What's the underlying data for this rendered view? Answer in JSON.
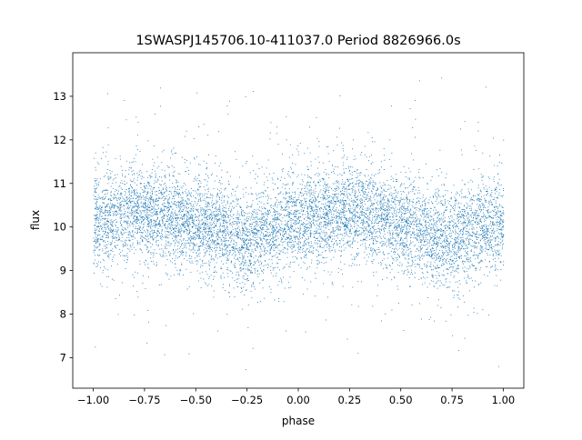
{
  "chart_data": {
    "type": "scatter",
    "title": "1SWASPJ145706.10-411037.0 Period 8826966.0s",
    "xlabel": "phase",
    "ylabel": "flux",
    "xlim": [
      -1.1,
      1.1
    ],
    "ylim": [
      6.3,
      14.0
    ],
    "xticks": [
      -1.0,
      -0.75,
      -0.5,
      -0.25,
      0.0,
      0.25,
      0.5,
      0.75,
      1.0
    ],
    "xtick_labels": [
      "−1.00",
      "−0.75",
      "−0.50",
      "−0.25",
      "0.00",
      "0.25",
      "0.50",
      "0.75",
      "1.00"
    ],
    "yticks": [
      7,
      8,
      9,
      10,
      11,
      12,
      13
    ],
    "ytick_labels": [
      "7",
      "8",
      "9",
      "10",
      "11",
      "12",
      "13"
    ],
    "grid": false,
    "point_color": "#1f77b4",
    "trend_profile": {
      "phase": [
        -1.0,
        -0.875,
        -0.75,
        -0.625,
        -0.5,
        -0.375,
        -0.25,
        -0.125,
        0.0,
        0.125,
        0.25,
        0.375,
        0.5,
        0.625,
        0.75,
        0.875,
        1.0
      ],
      "flux": [
        10.1,
        10.3,
        10.35,
        10.25,
        10.05,
        9.95,
        9.7,
        10.0,
        10.15,
        10.3,
        10.35,
        10.25,
        10.05,
        9.9,
        9.7,
        10.0,
        10.1
      ]
    },
    "scatter_sigma": 0.55,
    "n_points": 9000
  }
}
